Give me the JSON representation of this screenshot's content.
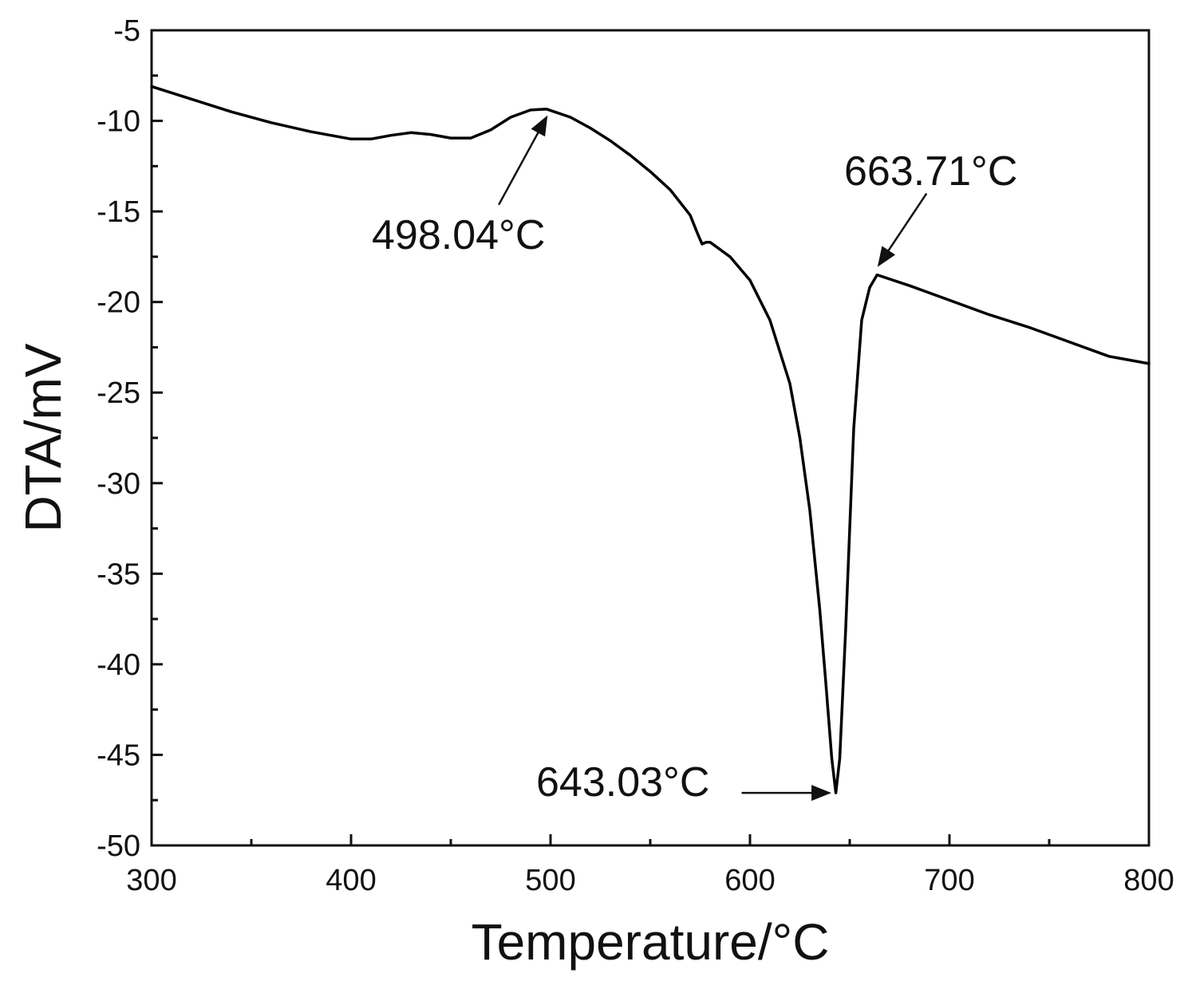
{
  "chart_data": {
    "type": "line",
    "xlabel": "Temperature/°C",
    "ylabel": "DTA/mV",
    "xlim": [
      300,
      800
    ],
    "ylim": [
      -50,
      -5
    ],
    "xticks": [
      300,
      400,
      500,
      600,
      700,
      800
    ],
    "yticks": [
      -5,
      -10,
      -15,
      -20,
      -25,
      -30,
      -35,
      -40,
      -45,
      -50
    ],
    "x_minor_step": 50,
    "y_minor_step": 2.5,
    "grid": false,
    "legend": "none",
    "line_color": "#000000",
    "series": [
      {
        "x": [
          300,
          320,
          340,
          360,
          380,
          400,
          410,
          420,
          430,
          440,
          450,
          460,
          470,
          480,
          490,
          498.04,
          510,
          520,
          530,
          540,
          550,
          560,
          570,
          574,
          576,
          578,
          580,
          590,
          600,
          610,
          620,
          625,
          630,
          635,
          638,
          641,
          643.03,
          645,
          648,
          652,
          656,
          660,
          663.71,
          680,
          700,
          720,
          740,
          760,
          780,
          800
        ],
        "y": [
          -8.1,
          -8.8,
          -9.5,
          -10.1,
          -10.6,
          -11.0,
          -11.0,
          -10.8,
          -10.65,
          -10.75,
          -10.95,
          -10.95,
          -10.5,
          -9.8,
          -9.4,
          -9.35,
          -9.8,
          -10.4,
          -11.1,
          -11.9,
          -12.8,
          -13.8,
          -15.2,
          -16.3,
          -16.8,
          -16.7,
          -16.7,
          -17.5,
          -18.8,
          -21.0,
          -24.5,
          -27.5,
          -31.5,
          -37.0,
          -41.0,
          -45.2,
          -47.1,
          -45.2,
          -38.0,
          -27.0,
          -21.0,
          -19.2,
          -18.5,
          -19.1,
          -19.9,
          -20.7,
          -21.4,
          -22.2,
          -23.0,
          -23.4
        ]
      }
    ],
    "annotations": [
      {
        "label": "498.04°C",
        "x": 498.04,
        "y": -9.35
      },
      {
        "label": "643.03°C",
        "x": 643.03,
        "y": -47.1
      },
      {
        "label": "663.71°C",
        "x": 663.71,
        "y": -18.5
      }
    ]
  }
}
